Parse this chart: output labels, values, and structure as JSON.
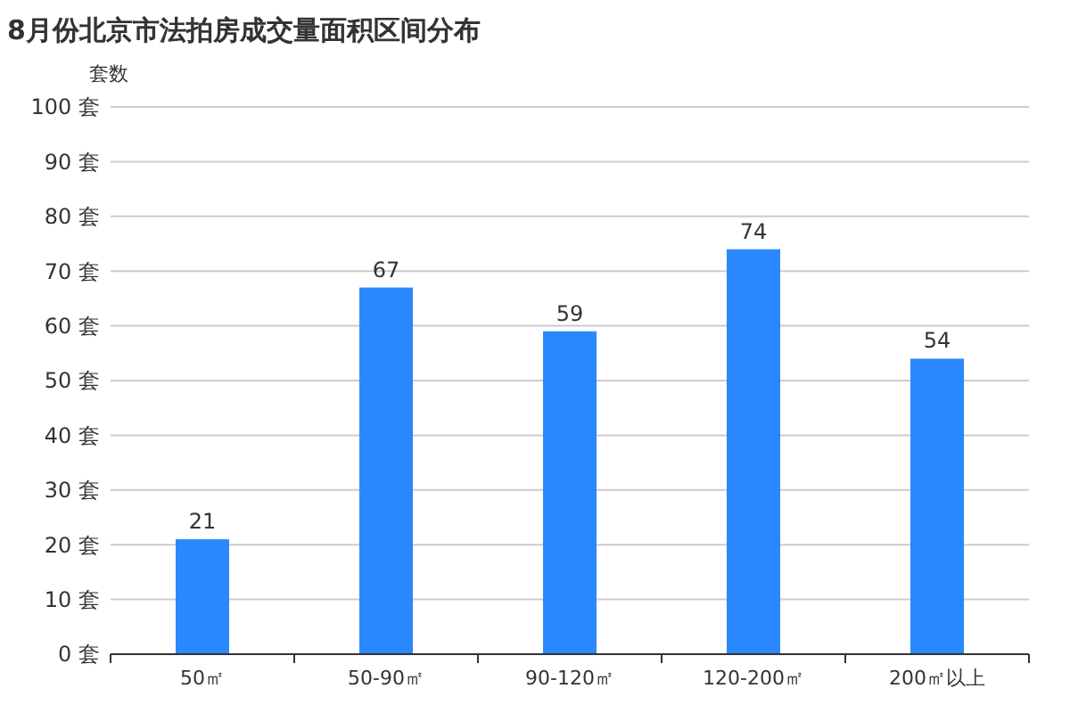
{
  "chart_data": {
    "type": "bar",
    "title": "8月份北京市法拍房成交量面积区间分布",
    "ylabel": "套数",
    "categories": [
      "50㎡",
      "50-90㎡",
      "90-120㎡",
      "120-200㎡",
      "200㎡以上"
    ],
    "values": [
      21,
      67,
      59,
      74,
      54
    ],
    "color": "#2a88ff",
    "ylim": [
      0,
      100
    ],
    "yticks": [
      {
        "value": 0,
        "label": "0 套"
      },
      {
        "value": 10,
        "label": "10 套"
      },
      {
        "value": 20,
        "label": "20 套"
      },
      {
        "value": 30,
        "label": "30 套"
      },
      {
        "value": 40,
        "label": "40 套"
      },
      {
        "value": 50,
        "label": "50 套"
      },
      {
        "value": 60,
        "label": "60 套"
      },
      {
        "value": 70,
        "label": "70 套"
      },
      {
        "value": 80,
        "label": "80 套"
      },
      {
        "value": 90,
        "label": "90 套"
      },
      {
        "value": 100,
        "label": "100 套"
      }
    ],
    "grid": "y",
    "data_labels": true
  }
}
